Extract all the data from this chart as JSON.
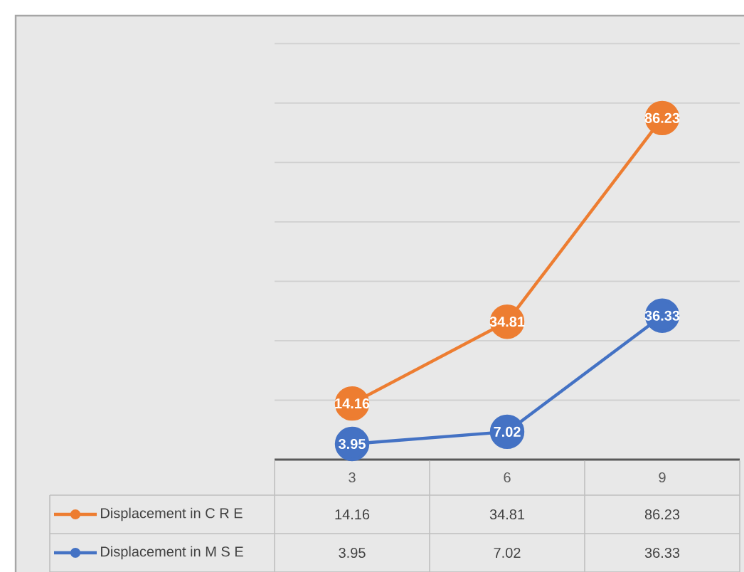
{
  "chart_data": {
    "type": "line",
    "categories": [
      "3",
      "6",
      "9"
    ],
    "series": [
      {
        "name": "Displacement in C R E",
        "color": "#ed7d31",
        "values": [
          14.16,
          34.81,
          86.23
        ]
      },
      {
        "name": "Displacement in M S E",
        "color": "#4472c4",
        "values": [
          3.95,
          7.02,
          36.33
        ]
      }
    ],
    "ylim": [
      0,
      105
    ],
    "yticks": [
      {
        "value": 0,
        "label": null
      },
      {
        "value": 15,
        "label": null
      },
      {
        "value": 30,
        "label": null
      },
      {
        "value": 45,
        "label": null
      },
      {
        "value": 60,
        "label": null
      },
      {
        "value": 75,
        "label": null
      },
      {
        "value": 90,
        "label": null
      },
      {
        "value": 105,
        "label": null
      }
    ],
    "grid": "y",
    "marker": "circle",
    "line_style": "solid",
    "legend": "bottom",
    "data_labels": true,
    "annotations": [
      {
        "text": "14.16",
        "x": "3",
        "y": 14.16
      },
      {
        "text": "34.81",
        "x": "6",
        "y": 34.81
      },
      {
        "text": "86.23",
        "x": "9",
        "y": 86.23
      },
      {
        "text": "3.95",
        "x": "3",
        "y": 3.95
      },
      {
        "text": "7.02",
        "x": "6",
        "y": 7.02
      },
      {
        "text": "36.33",
        "x": "9",
        "y": 36.33
      }
    ]
  }
}
